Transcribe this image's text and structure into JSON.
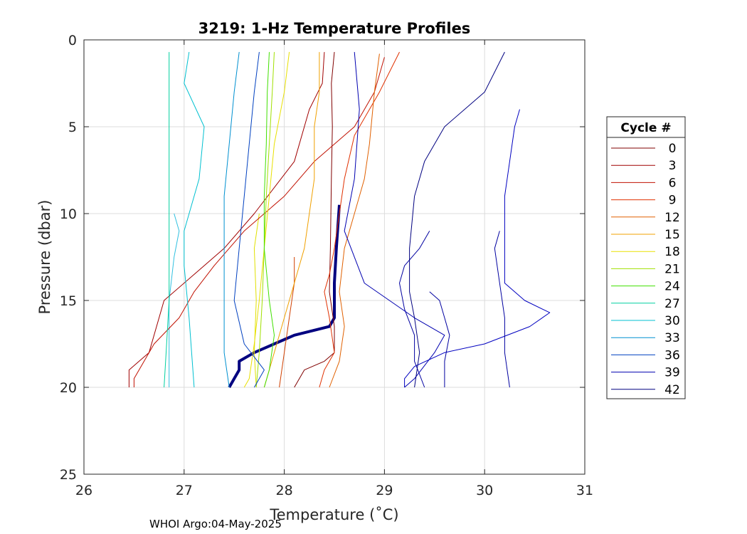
{
  "chart_data": {
    "type": "line",
    "title": "3219: 1-Hz Temperature Profiles",
    "xlabel": "Temperature (˚C)",
    "ylabel": "Pressure (dbar)",
    "xlim": [
      26,
      31
    ],
    "ylim": [
      0,
      25
    ],
    "y_reversed": true,
    "xticks": [
      "26",
      "27",
      "28",
      "29",
      "30",
      "31"
    ],
    "yticks": [
      "0",
      "5",
      "10",
      "15",
      "20",
      "25"
    ],
    "grid": true,
    "legend": {
      "title": "Cycle #",
      "placement": "right-outside"
    },
    "footer": "WHOI Argo:04-May-2025",
    "series": [
      {
        "name": "0",
        "color": "#800000",
        "points": [
          [
            28.5,
            0.7
          ],
          [
            28.47,
            2.5
          ],
          [
            28.48,
            5.0
          ],
          [
            28.47,
            8.0
          ],
          [
            28.46,
            12.0
          ],
          [
            28.45,
            14.5
          ],
          [
            28.5,
            16.5
          ],
          [
            28.5,
            18.0
          ],
          [
            28.4,
            18.5
          ],
          [
            28.2,
            19.0
          ],
          [
            28.1,
            20.0
          ]
        ]
      },
      {
        "name": "3",
        "color": "#a00000",
        "points": [
          [
            28.4,
            0.7
          ],
          [
            28.38,
            2.5
          ],
          [
            28.25,
            4.0
          ],
          [
            28.1,
            7.0
          ],
          [
            27.7,
            10.0
          ],
          [
            27.4,
            12.0
          ],
          [
            27.1,
            13.5
          ],
          [
            26.8,
            15.0
          ],
          [
            26.65,
            18.0
          ],
          [
            26.45,
            19.0
          ],
          [
            26.45,
            20.0
          ]
        ]
      },
      {
        "name": "6",
        "color": "#c01000",
        "points": [
          [
            29.0,
            1.0
          ],
          [
            28.9,
            3.0
          ],
          [
            28.7,
            5.0
          ],
          [
            28.3,
            7.0
          ],
          [
            28.0,
            9.0
          ],
          [
            27.6,
            11.0
          ],
          [
            27.3,
            13.0
          ],
          [
            27.1,
            14.5
          ],
          [
            26.95,
            16.0
          ],
          [
            26.7,
            17.5
          ],
          [
            26.5,
            19.5
          ],
          [
            26.5,
            20.0
          ]
        ]
      },
      {
        "name": "9",
        "color": "#e03000",
        "points": [
          [
            29.15,
            0.7
          ],
          [
            28.95,
            3.0
          ],
          [
            28.7,
            5.5
          ],
          [
            28.6,
            8.0
          ],
          [
            28.55,
            10.0
          ],
          [
            28.5,
            12.0
          ],
          [
            28.45,
            13.5
          ],
          [
            28.4,
            14.5
          ],
          [
            28.45,
            16.0
          ],
          [
            28.5,
            18.0
          ],
          [
            28.4,
            19.0
          ],
          [
            28.35,
            20.0
          ]
        ]
      },
      {
        "name": "12",
        "color": "#e06000",
        "points": [
          [
            28.95,
            0.8
          ],
          [
            28.9,
            3.0
          ],
          [
            28.85,
            6.0
          ],
          [
            28.8,
            8.0
          ],
          [
            28.7,
            10.0
          ],
          [
            28.6,
            12.0
          ],
          [
            28.55,
            14.5
          ],
          [
            28.6,
            16.5
          ],
          [
            28.55,
            18.5
          ],
          [
            28.45,
            20.0
          ]
        ]
      },
      {
        "name": "15",
        "color": "#f0a000",
        "points": [
          [
            28.35,
            0.7
          ],
          [
            28.35,
            3.0
          ],
          [
            28.3,
            5.0
          ],
          [
            28.3,
            8.0
          ],
          [
            28.25,
            10.0
          ],
          [
            28.2,
            12.0
          ],
          [
            28.1,
            14.0
          ],
          [
            28.0,
            16.0
          ],
          [
            27.9,
            18.0
          ],
          [
            27.8,
            20.0
          ]
        ]
      },
      {
        "name": "18",
        "color": "#e8e000",
        "points": [
          [
            28.05,
            0.7
          ],
          [
            28.0,
            3.0
          ],
          [
            27.9,
            6.0
          ],
          [
            27.85,
            9.0
          ],
          [
            27.8,
            12.0
          ],
          [
            27.75,
            15.0
          ],
          [
            27.7,
            17.5
          ],
          [
            27.65,
            19.5
          ],
          [
            27.6,
            20.0
          ]
        ]
      },
      {
        "name": "21",
        "color": "#a0e000",
        "points": [
          [
            27.9,
            0.7
          ],
          [
            27.88,
            3.0
          ],
          [
            27.85,
            6.0
          ],
          [
            27.82,
            9.0
          ],
          [
            27.8,
            12.0
          ],
          [
            27.78,
            15.0
          ],
          [
            27.75,
            18.0
          ],
          [
            27.72,
            20.0
          ]
        ]
      },
      {
        "name": "24",
        "color": "#40e000",
        "points": [
          [
            27.85,
            0.7
          ],
          [
            27.83,
            3.0
          ],
          [
            27.82,
            6.0
          ],
          [
            27.8,
            9.0
          ],
          [
            27.8,
            12.0
          ],
          [
            27.85,
            15.0
          ],
          [
            27.9,
            17.0
          ],
          [
            27.85,
            19.0
          ],
          [
            27.8,
            20.0
          ]
        ]
      },
      {
        "name": "27",
        "color": "#00d0a0",
        "points": [
          [
            26.85,
            0.7
          ],
          [
            26.85,
            3.0
          ],
          [
            26.85,
            6.0
          ],
          [
            26.85,
            9.0
          ],
          [
            26.85,
            12.0
          ],
          [
            26.85,
            15.0
          ],
          [
            26.82,
            18.0
          ],
          [
            26.8,
            20.0
          ]
        ]
      },
      {
        "name": "30",
        "color": "#00c0d0",
        "points": [
          [
            27.05,
            0.7
          ],
          [
            27.0,
            2.5
          ],
          [
            27.2,
            5.0
          ],
          [
            27.15,
            8.0
          ],
          [
            27.0,
            11.0
          ],
          [
            27.0,
            13.0
          ],
          [
            27.05,
            16.0
          ],
          [
            27.1,
            20.0
          ]
        ]
      },
      {
        "name": "33",
        "color": "#0090d0",
        "points": [
          [
            27.55,
            0.7
          ],
          [
            27.5,
            3.0
          ],
          [
            27.45,
            6.0
          ],
          [
            27.4,
            9.0
          ],
          [
            27.4,
            12.0
          ],
          [
            27.4,
            15.0
          ],
          [
            27.4,
            18.0
          ],
          [
            27.45,
            20.0
          ]
        ]
      },
      {
        "name": "36",
        "color": "#0040c0",
        "points": [
          [
            27.75,
            0.7
          ],
          [
            27.7,
            3.0
          ],
          [
            27.65,
            6.0
          ],
          [
            27.6,
            9.0
          ],
          [
            27.55,
            12.0
          ],
          [
            27.5,
            15.0
          ],
          [
            27.6,
            17.5
          ],
          [
            27.8,
            19.0
          ],
          [
            27.7,
            20.0
          ]
        ]
      },
      {
        "name": "39",
        "color": "#0000b0",
        "points": [
          [
            28.7,
            0.7
          ],
          [
            28.75,
            4.0
          ],
          [
            28.7,
            8.0
          ],
          [
            28.6,
            11.0
          ],
          [
            28.8,
            14.0
          ],
          [
            29.3,
            16.0
          ],
          [
            29.6,
            17.0
          ],
          [
            29.5,
            18.0
          ],
          [
            29.3,
            19.5
          ],
          [
            29.2,
            20.0
          ]
        ]
      },
      {
        "name": "42",
        "color": "#000080",
        "points": [
          [
            30.2,
            0.7
          ],
          [
            30.0,
            3.0
          ],
          [
            29.6,
            5.0
          ],
          [
            29.4,
            7.0
          ],
          [
            29.3,
            9.0
          ],
          [
            29.25,
            12.0
          ],
          [
            29.25,
            14.5
          ],
          [
            29.3,
            16.0
          ],
          [
            29.35,
            18.0
          ],
          [
            29.3,
            20.0
          ]
        ]
      }
    ],
    "extra_profiles": [
      {
        "color": "#000080",
        "width": 4,
        "points": [
          [
            28.55,
            9.5
          ],
          [
            28.52,
            12.0
          ],
          [
            28.5,
            14.0
          ],
          [
            28.5,
            16.0
          ],
          [
            28.45,
            16.5
          ],
          [
            28.1,
            17.0
          ],
          [
            27.9,
            17.5
          ],
          [
            27.7,
            18.0
          ],
          [
            27.55,
            18.5
          ],
          [
            27.55,
            19.0
          ],
          [
            27.5,
            19.5
          ],
          [
            27.45,
            20.0
          ]
        ]
      },
      {
        "color": "#0000c0",
        "points": [
          [
            30.35,
            4.0
          ],
          [
            30.3,
            5.0
          ],
          [
            30.25,
            7.0
          ],
          [
            30.2,
            9.0
          ],
          [
            30.2,
            11.0
          ],
          [
            30.2,
            14.0
          ],
          [
            30.4,
            15.0
          ],
          [
            30.65,
            15.7
          ],
          [
            30.45,
            16.5
          ],
          [
            30.0,
            17.5
          ],
          [
            29.6,
            18.0
          ],
          [
            29.3,
            18.8
          ],
          [
            29.2,
            19.5
          ],
          [
            29.2,
            20.0
          ]
        ]
      },
      {
        "color": "#0000a0",
        "points": [
          [
            29.45,
            11.0
          ],
          [
            29.35,
            12.0
          ],
          [
            29.2,
            13.0
          ],
          [
            29.15,
            14.0
          ],
          [
            29.2,
            15.5
          ],
          [
            29.3,
            17.0
          ],
          [
            29.3,
            18.5
          ],
          [
            29.4,
            20.0
          ]
        ]
      },
      {
        "color": "#0000a0",
        "points": [
          [
            30.15,
            11.0
          ],
          [
            30.1,
            12.0
          ],
          [
            30.15,
            14.0
          ],
          [
            30.2,
            16.0
          ],
          [
            30.2,
            18.0
          ],
          [
            30.25,
            20.0
          ]
        ]
      },
      {
        "color": "#0000a0",
        "points": [
          [
            29.45,
            14.5
          ],
          [
            29.55,
            15.0
          ],
          [
            29.6,
            16.0
          ],
          [
            29.65,
            17.0
          ],
          [
            29.6,
            18.5
          ],
          [
            29.6,
            20.0
          ]
        ]
      },
      {
        "color": "#30c0e0",
        "points": [
          [
            26.9,
            10.0
          ],
          [
            26.95,
            11.0
          ],
          [
            26.9,
            12.5
          ],
          [
            26.85,
            15.0
          ],
          [
            26.85,
            18.0
          ],
          [
            26.85,
            20.0
          ]
        ]
      },
      {
        "color": "#e0e000",
        "points": [
          [
            27.75,
            10.0
          ],
          [
            27.7,
            12.0
          ],
          [
            27.72,
            15.0
          ],
          [
            27.7,
            18.0
          ],
          [
            27.72,
            20.0
          ]
        ]
      },
      {
        "color": "#d04000",
        "points": [
          [
            28.1,
            12.5
          ],
          [
            28.1,
            14.0
          ],
          [
            28.05,
            16.0
          ],
          [
            28.0,
            18.0
          ],
          [
            27.95,
            20.0
          ]
        ]
      }
    ]
  }
}
